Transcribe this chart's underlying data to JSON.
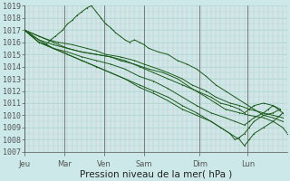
{
  "bg_color": "#cce8e8",
  "plot_bg": "#cce8e8",
  "grid_color_v": "#e8b0b0",
  "grid_color_h": "#b8d8d8",
  "line_color": "#1a5c1a",
  "ylim": [
    1007,
    1019
  ],
  "yticks": [
    1007,
    1008,
    1009,
    1010,
    1011,
    1012,
    1013,
    1014,
    1015,
    1016,
    1017,
    1018,
    1019
  ],
  "xlabel": "Pression niveau de la mer( hPa )",
  "xlabel_fontsize": 7.5,
  "tick_fontsize": 6,
  "day_labels": [
    "Jeu",
    "Mar",
    "Ven",
    "Sam",
    "Dim",
    "Lun"
  ],
  "day_positions": [
    0.0,
    0.833,
    1.667,
    2.5,
    3.667,
    4.667
  ],
  "xlim": [
    0,
    5.5
  ],
  "lines": [
    [
      0.0,
      1017.0,
      0.15,
      1016.5,
      0.3,
      1016.0,
      0.45,
      1015.8,
      0.55,
      1016.2,
      0.65,
      1016.5,
      0.8,
      1017.0,
      0.9,
      1017.5,
      1.0,
      1017.8,
      1.1,
      1018.2,
      1.2,
      1018.5,
      1.3,
      1018.8,
      1.4,
      1019.0,
      1.5,
      1018.5,
      1.6,
      1018.0,
      1.7,
      1017.5,
      1.8,
      1017.2,
      1.85,
      1017.0,
      1.9,
      1016.8,
      2.0,
      1016.5,
      2.1,
      1016.2,
      2.2,
      1016.0,
      2.3,
      1016.2,
      2.4,
      1016.0,
      2.5,
      1015.8,
      2.6,
      1015.5,
      2.8,
      1015.2,
      3.0,
      1015.0,
      3.2,
      1014.5,
      3.4,
      1014.2,
      3.6,
      1013.8,
      3.8,
      1013.2,
      4.0,
      1012.5,
      4.2,
      1012.0,
      4.4,
      1011.5,
      4.6,
      1011.0,
      4.8,
      1010.5,
      5.0,
      1010.0,
      5.2,
      1009.8,
      5.4,
      1009.5
    ],
    [
      0.0,
      1017.0,
      0.3,
      1016.5,
      0.5,
      1016.2,
      0.7,
      1016.0,
      1.0,
      1015.8,
      1.3,
      1015.5,
      1.5,
      1015.3,
      1.7,
      1015.0,
      2.0,
      1014.8,
      2.3,
      1014.5,
      2.5,
      1014.2,
      2.8,
      1013.8,
      3.0,
      1013.5,
      3.3,
      1013.0,
      3.5,
      1012.5,
      3.8,
      1012.0,
      4.0,
      1011.5,
      4.3,
      1011.0,
      4.5,
      1010.8,
      4.7,
      1010.5,
      5.0,
      1010.2,
      5.2,
      1010.0,
      5.4,
      1009.8
    ],
    [
      0.0,
      1017.0,
      0.3,
      1016.2,
      0.6,
      1015.8,
      0.9,
      1015.5,
      1.2,
      1015.2,
      1.5,
      1015.0,
      1.8,
      1014.8,
      2.0,
      1014.5,
      2.3,
      1014.2,
      2.6,
      1013.8,
      2.9,
      1013.5,
      3.2,
      1013.0,
      3.5,
      1012.2,
      3.8,
      1011.5,
      4.0,
      1011.0,
      4.2,
      1010.5,
      4.5,
      1010.2,
      4.7,
      1010.0,
      5.0,
      1009.8,
      5.2,
      1009.5,
      5.4,
      1009.0,
      5.5,
      1008.5
    ],
    [
      0.0,
      1017.0,
      0.3,
      1016.0,
      0.6,
      1015.5,
      0.9,
      1015.2,
      1.2,
      1014.8,
      1.5,
      1014.5,
      1.8,
      1014.2,
      2.1,
      1013.8,
      2.4,
      1013.2,
      2.7,
      1012.8,
      3.0,
      1012.2,
      3.3,
      1011.5,
      3.6,
      1010.8,
      3.9,
      1010.2,
      4.2,
      1009.8,
      4.4,
      1009.5,
      4.6,
      1009.2,
      4.7,
      1009.5,
      4.8,
      1009.8,
      5.0,
      1010.2,
      5.1,
      1010.5,
      5.2,
      1010.8,
      5.3,
      1010.5,
      5.4,
      1010.2
    ],
    [
      0.0,
      1017.0,
      0.3,
      1016.0,
      0.6,
      1015.5,
      0.9,
      1015.0,
      1.2,
      1014.5,
      1.5,
      1014.0,
      1.8,
      1013.5,
      2.1,
      1013.0,
      2.4,
      1012.5,
      2.7,
      1012.0,
      3.0,
      1011.5,
      3.3,
      1010.8,
      3.6,
      1010.2,
      3.9,
      1009.5,
      4.1,
      1009.0,
      4.3,
      1008.5,
      4.5,
      1008.0,
      4.6,
      1007.5,
      4.7,
      1008.0,
      4.8,
      1008.5,
      5.0,
      1009.0,
      5.2,
      1009.5,
      5.35,
      1010.0,
      5.4,
      1010.2
    ],
    [
      0.0,
      1017.0,
      0.3,
      1016.2,
      0.6,
      1015.5,
      0.9,
      1015.0,
      1.2,
      1014.5,
      1.5,
      1014.0,
      1.8,
      1013.5,
      2.1,
      1013.0,
      2.4,
      1012.3,
      2.7,
      1011.8,
      3.0,
      1011.2,
      3.3,
      1010.5,
      3.6,
      1010.0,
      3.9,
      1009.5,
      4.1,
      1009.0,
      4.3,
      1008.5,
      4.4,
      1008.0,
      4.5,
      1008.2,
      4.6,
      1008.5,
      4.7,
      1009.0,
      4.8,
      1009.5,
      5.0,
      1010.0,
      5.2,
      1010.2,
      5.35,
      1010.5
    ],
    [
      0.0,
      1017.0,
      0.3,
      1016.5,
      0.6,
      1016.0,
      0.9,
      1015.5,
      1.2,
      1015.2,
      1.5,
      1015.0,
      1.8,
      1014.8,
      2.1,
      1014.5,
      2.4,
      1014.0,
      2.7,
      1013.5,
      3.0,
      1013.0,
      3.3,
      1012.5,
      3.6,
      1012.0,
      3.9,
      1011.5,
      4.1,
      1011.0,
      4.3,
      1010.8,
      4.5,
      1010.5,
      4.6,
      1010.2,
      4.7,
      1010.5,
      4.8,
      1010.8,
      5.0,
      1011.0,
      5.2,
      1010.8,
      5.35,
      1010.5
    ]
  ]
}
